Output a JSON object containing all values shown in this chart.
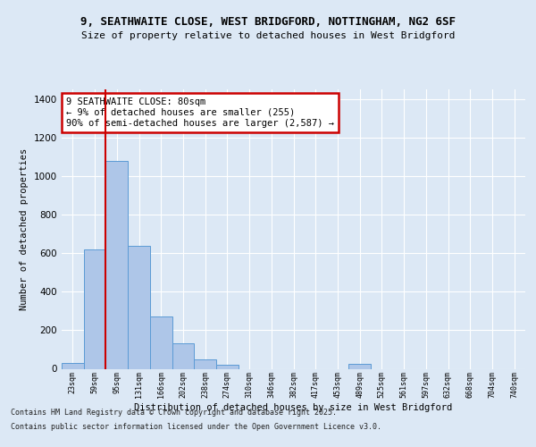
{
  "title_line1": "9, SEATHWAITE CLOSE, WEST BRIDGFORD, NOTTINGHAM, NG2 6SF",
  "title_line2": "Size of property relative to detached houses in West Bridgford",
  "xlabel": "Distribution of detached houses by size in West Bridgford",
  "ylabel": "Number of detached properties",
  "footnote1": "Contains HM Land Registry data © Crown copyright and database right 2025.",
  "footnote2": "Contains public sector information licensed under the Open Government Licence v3.0.",
  "bin_labels": [
    "23sqm",
    "59sqm",
    "95sqm",
    "131sqm",
    "166sqm",
    "202sqm",
    "238sqm",
    "274sqm",
    "310sqm",
    "346sqm",
    "382sqm",
    "417sqm",
    "453sqm",
    "489sqm",
    "525sqm",
    "561sqm",
    "597sqm",
    "632sqm",
    "668sqm",
    "704sqm",
    "740sqm"
  ],
  "bar_heights": [
    30,
    620,
    1080,
    640,
    270,
    130,
    50,
    20,
    0,
    0,
    0,
    0,
    0,
    25,
    0,
    0,
    0,
    0,
    0,
    0,
    0
  ],
  "bar_color": "#aec6e8",
  "bar_edge_color": "#5b9bd5",
  "ylim": [
    0,
    1450
  ],
  "yticks": [
    0,
    200,
    400,
    600,
    800,
    1000,
    1200,
    1400
  ],
  "vline_x": 1.5,
  "vline_color": "#cc0000",
  "annotation_text": "9 SEATHWAITE CLOSE: 80sqm\n← 9% of detached houses are smaller (255)\n90% of semi-detached houses are larger (2,587) →",
  "annotation_box_color": "#ffffff",
  "annotation_border_color": "#cc0000",
  "bg_color": "#dce8f5",
  "plot_bg_color": "#dce8f5"
}
